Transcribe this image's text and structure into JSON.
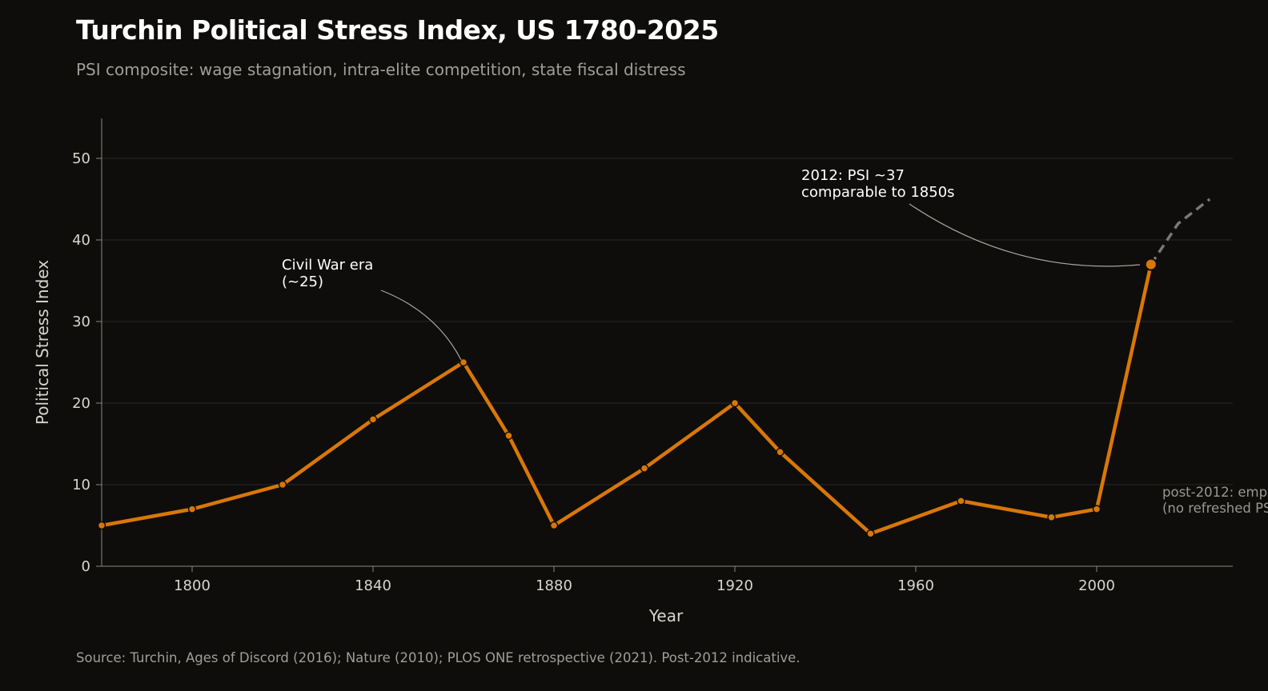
{
  "title": "Turchin Political Stress Index, US 1780-2025",
  "subtitle": "PSI composite: wage stagnation, intra-elite competition, state fiscal distress",
  "source": "Source: Turchin, Ages of Discord (2016); Nature (2010); PLOS ONE retrospective (2021). Post-2012 indicative.",
  "colors": {
    "background": "#0e0d0b",
    "series": "#d97706",
    "projection": "#7a7875",
    "grid": "#2a2825",
    "axis": "#8a8782",
    "text": "#d8d5cf",
    "muted": "#9a9791"
  },
  "chart_data": {
    "type": "line",
    "title": "Turchin Political Stress Index, US 1780-2025",
    "xlabel": "Year",
    "ylabel": "Political Stress Index",
    "xlim": [
      1780,
      2030
    ],
    "ylim": [
      0,
      55
    ],
    "x_ticks": [
      1800,
      1840,
      1880,
      1920,
      1960,
      2000
    ],
    "y_ticks": [
      0,
      10,
      20,
      30,
      40,
      50
    ],
    "grid": "horizontal",
    "series": [
      {
        "style": "solid-with-markers",
        "x": [
          1780,
          1800,
          1820,
          1840,
          1860,
          1870,
          1880,
          1900,
          1920,
          1930,
          1950,
          1970,
          1990,
          2000,
          2012
        ],
        "y": [
          5,
          7,
          10,
          18,
          25,
          16,
          5,
          12,
          20,
          14,
          4,
          8,
          6,
          7,
          37
        ]
      },
      {
        "style": "dashed",
        "x": [
          2012,
          2018,
          2025
        ],
        "y": [
          37,
          42,
          45
        ]
      }
    ],
    "highlight": {
      "x": 2012,
      "y": 37
    },
    "annotations": [
      {
        "lines": [
          "Civil War era",
          "(~25)"
        ],
        "target_x": 1860,
        "target_y": 25
      },
      {
        "lines": [
          "2012: PSI ~37",
          "comparable to 1850s"
        ],
        "target_x": 2012,
        "target_y": 37
      },
      {
        "lines": [
          "post-2012: emp",
          "(no refreshed PS"
        ],
        "muted": true
      }
    ]
  }
}
